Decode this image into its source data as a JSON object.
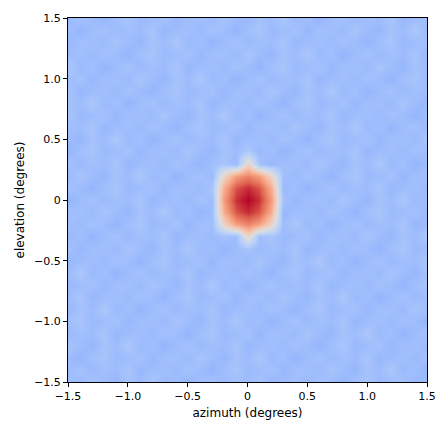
{
  "chart_data": {
    "type": "heatmap",
    "xlabel": "azimuth (degrees)",
    "ylabel": "elevation (degrees)",
    "xlim": [
      -1.5,
      1.5
    ],
    "ylim": [
      -1.5,
      1.5
    ],
    "xticks": [
      {
        "value": -1.5,
        "label": "−1.5"
      },
      {
        "value": -1,
        "label": "−1.0"
      },
      {
        "value": -0.5,
        "label": "−0.5"
      },
      0,
      0.5,
      {
        "value": 1,
        "label": "1.0"
      },
      1.5
    ],
    "yticks": [
      {
        "value": -1.5,
        "label": "−1.5"
      },
      {
        "value": -1,
        "label": "−1.0"
      },
      {
        "value": -0.5,
        "label": "−0.5"
      },
      0,
      0.5,
      {
        "value": 1,
        "label": "1.0"
      },
      1.5
    ],
    "grid": false,
    "zlim": [
      0,
      1
    ],
    "x": [
      -1.5,
      -1.4,
      -1.3,
      -1.2,
      -1.1,
      -1.0,
      -0.9,
      -0.8,
      -0.7,
      -0.6,
      -0.5,
      -0.4,
      -0.3,
      -0.2,
      -0.1,
      0,
      0.1,
      0.2,
      0.3,
      0.4,
      0.5,
      0.6,
      0.7,
      0.8,
      0.9,
      1.0,
      1.1,
      1.2,
      1.3,
      1.4,
      1.5
    ],
    "y": [
      -1.5,
      -1.4,
      -1.3,
      -1.2,
      -1.1,
      -1.0,
      -0.9,
      -0.8,
      -0.7,
      -0.6,
      -0.5,
      -0.4,
      -0.3,
      -0.2,
      -0.1,
      0,
      0.1,
      0.2,
      0.3,
      0.4,
      0.5,
      0.6,
      0.7,
      0.8,
      0.9,
      1.0,
      1.1,
      1.2,
      1.3,
      1.4,
      1.5
    ],
    "z": [
      [
        0.31,
        0.29,
        0.33,
        0.3,
        0.28,
        0.32,
        0.3,
        0.34,
        0.29,
        0.31,
        0.27,
        0.3,
        0.32,
        0.29,
        0.31,
        0.3,
        0.33,
        0.28,
        0.3,
        0.31,
        0.29,
        0.32,
        0.3,
        0.27,
        0.31,
        0.33,
        0.29,
        0.3,
        0.32,
        0.28,
        0.31
      ],
      [
        0.3,
        0.32,
        0.29,
        0.31,
        0.3,
        0.33,
        0.28,
        0.3,
        0.31,
        0.29,
        0.32,
        0.3,
        0.27,
        0.31,
        0.33,
        0.29,
        0.3,
        0.32,
        0.28,
        0.31,
        0.31,
        0.29,
        0.33,
        0.3,
        0.28,
        0.32,
        0.3,
        0.34,
        0.29,
        0.31,
        0.27
      ],
      [
        0.3,
        0.27,
        0.31,
        0.33,
        0.29,
        0.3,
        0.32,
        0.28,
        0.31,
        0.31,
        0.29,
        0.33,
        0.3,
        0.28,
        0.32,
        0.3,
        0.34,
        0.29,
        0.31,
        0.27,
        0.3,
        0.32,
        0.29,
        0.31,
        0.3,
        0.33,
        0.28,
        0.3,
        0.31,
        0.29,
        0.32
      ],
      [
        0.33,
        0.3,
        0.28,
        0.32,
        0.3,
        0.34,
        0.29,
        0.31,
        0.27,
        0.3,
        0.32,
        0.29,
        0.31,
        0.3,
        0.33,
        0.28,
        0.3,
        0.31,
        0.29,
        0.32,
        0.3,
        0.27,
        0.31,
        0.33,
        0.29,
        0.3,
        0.32,
        0.28,
        0.31,
        0.31,
        0.29
      ],
      [
        0.29,
        0.31,
        0.3,
        0.33,
        0.28,
        0.3,
        0.31,
        0.29,
        0.32,
        0.3,
        0.27,
        0.31,
        0.33,
        0.29,
        0.3,
        0.32,
        0.28,
        0.31,
        0.31,
        0.29,
        0.33,
        0.3,
        0.28,
        0.32,
        0.3,
        0.34,
        0.29,
        0.31,
        0.27,
        0.3,
        0.32
      ],
      [
        0.31,
        0.33,
        0.29,
        0.3,
        0.32,
        0.28,
        0.31,
        0.31,
        0.29,
        0.33,
        0.3,
        0.28,
        0.32,
        0.3,
        0.34,
        0.29,
        0.31,
        0.27,
        0.3,
        0.32,
        0.29,
        0.31,
        0.3,
        0.33,
        0.28,
        0.3,
        0.31,
        0.29,
        0.32,
        0.3,
        0.27
      ],
      [
        0.28,
        0.32,
        0.3,
        0.34,
        0.29,
        0.31,
        0.27,
        0.3,
        0.32,
        0.29,
        0.31,
        0.3,
        0.33,
        0.28,
        0.3,
        0.31,
        0.29,
        0.32,
        0.3,
        0.27,
        0.31,
        0.33,
        0.29,
        0.3,
        0.32,
        0.28,
        0.31,
        0.31,
        0.29,
        0.33,
        0.3
      ],
      [
        0.3,
        0.33,
        0.28,
        0.3,
        0.31,
        0.29,
        0.32,
        0.3,
        0.27,
        0.31,
        0.33,
        0.29,
        0.3,
        0.32,
        0.28,
        0.31,
        0.31,
        0.29,
        0.33,
        0.3,
        0.28,
        0.32,
        0.3,
        0.34,
        0.29,
        0.31,
        0.27,
        0.3,
        0.32,
        0.29,
        0.31
      ],
      [
        0.29,
        0.3,
        0.32,
        0.28,
        0.31,
        0.31,
        0.29,
        0.33,
        0.3,
        0.28,
        0.32,
        0.3,
        0.34,
        0.29,
        0.31,
        0.27,
        0.3,
        0.32,
        0.29,
        0.31,
        0.3,
        0.33,
        0.28,
        0.3,
        0.31,
        0.29,
        0.32,
        0.3,
        0.27,
        0.31,
        0.33
      ],
      [
        0.3,
        0.34,
        0.29,
        0.31,
        0.27,
        0.3,
        0.32,
        0.29,
        0.31,
        0.3,
        0.33,
        0.28,
        0.3,
        0.31,
        0.29,
        0.32,
        0.3,
        0.27,
        0.31,
        0.33,
        0.29,
        0.3,
        0.32,
        0.28,
        0.31,
        0.31,
        0.29,
        0.33,
        0.3,
        0.28,
        0.32
      ],
      [
        0.28,
        0.3,
        0.31,
        0.29,
        0.32,
        0.3,
        0.27,
        0.31,
        0.33,
        0.29,
        0.3,
        0.32,
        0.28,
        0.31,
        0.31,
        0.29,
        0.33,
        0.3,
        0.28,
        0.32,
        0.3,
        0.34,
        0.29,
        0.31,
        0.27,
        0.3,
        0.32,
        0.29,
        0.31,
        0.3,
        0.33
      ],
      [
        0.32,
        0.28,
        0.31,
        0.31,
        0.29,
        0.33,
        0.3,
        0.28,
        0.32,
        0.3,
        0.34,
        0.29,
        0.31,
        0.27,
        0.3,
        0.32,
        0.29,
        0.31,
        0.3,
        0.33,
        0.28,
        0.3,
        0.31,
        0.29,
        0.32,
        0.3,
        0.27,
        0.31,
        0.33,
        0.29,
        0.3
      ],
      [
        0.29,
        0.31,
        0.27,
        0.3,
        0.32,
        0.29,
        0.31,
        0.3,
        0.33,
        0.28,
        0.3,
        0.31,
        0.29,
        0.32,
        0.3,
        0.56,
        0.31,
        0.33,
        0.29,
        0.3,
        0.32,
        0.28,
        0.31,
        0.31,
        0.29,
        0.33,
        0.3,
        0.28,
        0.32,
        0.3,
        0.34
      ],
      [
        0.31,
        0.29,
        0.32,
        0.3,
        0.27,
        0.31,
        0.33,
        0.29,
        0.3,
        0.32,
        0.28,
        0.31,
        0.31,
        0.56,
        0.74,
        0.8,
        0.74,
        0.56,
        0.3,
        0.34,
        0.29,
        0.31,
        0.27,
        0.3,
        0.32,
        0.29,
        0.31,
        0.3,
        0.33,
        0.28,
        0.3
      ],
      [
        0.31,
        0.31,
        0.29,
        0.33,
        0.3,
        0.28,
        0.32,
        0.3,
        0.34,
        0.29,
        0.31,
        0.27,
        0.3,
        0.7,
        0.89,
        0.95,
        0.89,
        0.7,
        0.28,
        0.3,
        0.31,
        0.29,
        0.32,
        0.3,
        0.27,
        0.31,
        0.33,
        0.29,
        0.3,
        0.32,
        0.28
      ],
      [
        0.27,
        0.3,
        0.32,
        0.29,
        0.31,
        0.3,
        0.33,
        0.28,
        0.3,
        0.31,
        0.29,
        0.32,
        0.3,
        0.75,
        0.94,
        1.0,
        0.94,
        0.75,
        0.32,
        0.28,
        0.31,
        0.31,
        0.29,
        0.33,
        0.3,
        0.28,
        0.32,
        0.3,
        0.34,
        0.29,
        0.31
      ],
      [
        0.32,
        0.3,
        0.27,
        0.31,
        0.33,
        0.29,
        0.3,
        0.32,
        0.28,
        0.31,
        0.31,
        0.29,
        0.33,
        0.7,
        0.89,
        0.95,
        0.89,
        0.7,
        0.29,
        0.31,
        0.27,
        0.3,
        0.32,
        0.29,
        0.31,
        0.3,
        0.33,
        0.28,
        0.3,
        0.31,
        0.29
      ],
      [
        0.29,
        0.33,
        0.3,
        0.28,
        0.32,
        0.3,
        0.34,
        0.29,
        0.31,
        0.27,
        0.3,
        0.32,
        0.29,
        0.56,
        0.74,
        0.8,
        0.74,
        0.56,
        0.31,
        0.29,
        0.32,
        0.3,
        0.27,
        0.31,
        0.33,
        0.29,
        0.3,
        0.32,
        0.28,
        0.31,
        0.31
      ],
      [
        0.32,
        0.29,
        0.31,
        0.3,
        0.33,
        0.28,
        0.3,
        0.31,
        0.29,
        0.32,
        0.3,
        0.27,
        0.31,
        0.33,
        0.29,
        0.56,
        0.32,
        0.28,
        0.31,
        0.31,
        0.29,
        0.33,
        0.3,
        0.28,
        0.32,
        0.3,
        0.34,
        0.29,
        0.31,
        0.27,
        0.3
      ],
      [
        0.27,
        0.31,
        0.33,
        0.29,
        0.3,
        0.32,
        0.28,
        0.31,
        0.31,
        0.29,
        0.33,
        0.3,
        0.28,
        0.32,
        0.3,
        0.34,
        0.29,
        0.31,
        0.27,
        0.3,
        0.32,
        0.29,
        0.31,
        0.3,
        0.33,
        0.28,
        0.3,
        0.31,
        0.29,
        0.32,
        0.3
      ],
      [
        0.3,
        0.28,
        0.32,
        0.3,
        0.34,
        0.29,
        0.31,
        0.27,
        0.3,
        0.32,
        0.29,
        0.31,
        0.3,
        0.33,
        0.28,
        0.3,
        0.31,
        0.29,
        0.32,
        0.3,
        0.27,
        0.31,
        0.33,
        0.29,
        0.3,
        0.32,
        0.28,
        0.31,
        0.31,
        0.29,
        0.33
      ],
      [
        0.31,
        0.3,
        0.33,
        0.28,
        0.3,
        0.31,
        0.29,
        0.32,
        0.3,
        0.27,
        0.31,
        0.33,
        0.29,
        0.3,
        0.32,
        0.28,
        0.31,
        0.31,
        0.29,
        0.33,
        0.3,
        0.28,
        0.32,
        0.3,
        0.34,
        0.29,
        0.31,
        0.27,
        0.3,
        0.32,
        0.29
      ],
      [
        0.33,
        0.29,
        0.3,
        0.32,
        0.28,
        0.31,
        0.31,
        0.29,
        0.33,
        0.3,
        0.28,
        0.32,
        0.3,
        0.34,
        0.29,
        0.31,
        0.27,
        0.3,
        0.32,
        0.29,
        0.31,
        0.3,
        0.33,
        0.28,
        0.3,
        0.31,
        0.29,
        0.32,
        0.3,
        0.27,
        0.31
      ],
      [
        0.32,
        0.3,
        0.34,
        0.29,
        0.31,
        0.27,
        0.3,
        0.32,
        0.29,
        0.31,
        0.3,
        0.33,
        0.28,
        0.3,
        0.31,
        0.29,
        0.32,
        0.3,
        0.27,
        0.31,
        0.33,
        0.29,
        0.3,
        0.32,
        0.28,
        0.31,
        0.31,
        0.29,
        0.33,
        0.3,
        0.28
      ],
      [
        0.33,
        0.28,
        0.3,
        0.31,
        0.29,
        0.32,
        0.3,
        0.27,
        0.31,
        0.33,
        0.29,
        0.3,
        0.32,
        0.28,
        0.31,
        0.31,
        0.29,
        0.33,
        0.3,
        0.28,
        0.32,
        0.3,
        0.34,
        0.29,
        0.31,
        0.27,
        0.3,
        0.32,
        0.29,
        0.31,
        0.3
      ],
      [
        0.3,
        0.32,
        0.28,
        0.31,
        0.31,
        0.29,
        0.33,
        0.3,
        0.28,
        0.32,
        0.3,
        0.34,
        0.29,
        0.31,
        0.27,
        0.3,
        0.32,
        0.29,
        0.31,
        0.3,
        0.33,
        0.28,
        0.3,
        0.31,
        0.29,
        0.32,
        0.3,
        0.27,
        0.31,
        0.33,
        0.29
      ],
      [
        0.34,
        0.29,
        0.31,
        0.27,
        0.3,
        0.32,
        0.29,
        0.31,
        0.3,
        0.33,
        0.28,
        0.3,
        0.31,
        0.29,
        0.32,
        0.3,
        0.27,
        0.31,
        0.33,
        0.29,
        0.3,
        0.32,
        0.28,
        0.31,
        0.31,
        0.29,
        0.33,
        0.3,
        0.28,
        0.32,
        0.3
      ],
      [
        0.3,
        0.31,
        0.29,
        0.32,
        0.3,
        0.27,
        0.31,
        0.33,
        0.29,
        0.3,
        0.32,
        0.28,
        0.31,
        0.31,
        0.29,
        0.33,
        0.3,
        0.28,
        0.32,
        0.3,
        0.34,
        0.29,
        0.31,
        0.27,
        0.3,
        0.32,
        0.29,
        0.31,
        0.3,
        0.33,
        0.28
      ],
      [
        0.28,
        0.31,
        0.31,
        0.29,
        0.33,
        0.3,
        0.28,
        0.32,
        0.3,
        0.34,
        0.29,
        0.31,
        0.27,
        0.3,
        0.32,
        0.29,
        0.31,
        0.3,
        0.33,
        0.28,
        0.3,
        0.31,
        0.29,
        0.32,
        0.3,
        0.27,
        0.31,
        0.33,
        0.29,
        0.3,
        0.32
      ],
      [
        0.31,
        0.27,
        0.3,
        0.32,
        0.29,
        0.31,
        0.3,
        0.33,
        0.28,
        0.3,
        0.31,
        0.29,
        0.32,
        0.3,
        0.27,
        0.31,
        0.33,
        0.29,
        0.3,
        0.32,
        0.28,
        0.31,
        0.31,
        0.29,
        0.33,
        0.3,
        0.28,
        0.32,
        0.3,
        0.34,
        0.29
      ],
      [
        0.29,
        0.32,
        0.3,
        0.27,
        0.31,
        0.33,
        0.29,
        0.3,
        0.32,
        0.28,
        0.31,
        0.31,
        0.29,
        0.33,
        0.3,
        0.28,
        0.32,
        0.3,
        0.34,
        0.29,
        0.31,
        0.27,
        0.3,
        0.32,
        0.29,
        0.31,
        0.3,
        0.33,
        0.28,
        0.3,
        0.31
      ]
    ]
  }
}
